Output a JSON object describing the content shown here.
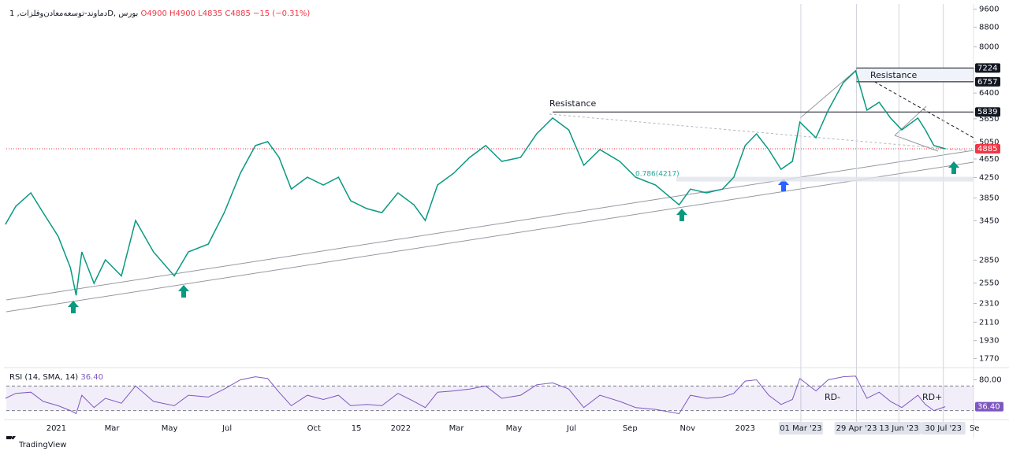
{
  "chart_data": [
    {
      "type": "line",
      "title": "دماوند-توسعه‌معادن‌وفلزات, 1D, بورس",
      "ohlc": [
        {
          "label": "O",
          "value": 4900
        },
        {
          "label": "H",
          "value": 4900
        },
        {
          "label": "L",
          "value": 4835
        },
        {
          "label": "C",
          "value": 4885
        }
      ],
      "change": "−15 (−0.31%)",
      "log_scale": true,
      "grid": false,
      "color": "#089981",
      "x": [
        "2020-11-08",
        "2020-11-19",
        "2020-12-05",
        "2020-12-18",
        "2021-01-03",
        "2021-01-16",
        "2021-01-22",
        "2021-01-28",
        "2021-02-10",
        "2021-02-22",
        "2021-03-11",
        "2021-03-26",
        "2021-04-14",
        "2021-05-06",
        "2021-05-21",
        "2021-06-11",
        "2021-06-28",
        "2021-07-15",
        "2021-07-31",
        "2021-08-13",
        "2021-08-25",
        "2021-09-07",
        "2021-09-24",
        "2021-10-11",
        "2021-10-27",
        "2021-11-09",
        "2021-11-26",
        "2021-12-12",
        "2021-12-29",
        "2022-01-15",
        "2022-01-27",
        "2022-02-09",
        "2022-02-26",
        "2022-03-15",
        "2022-04-01",
        "2022-04-18",
        "2022-05-08",
        "2022-05-25",
        "2022-06-11",
        "2022-06-28",
        "2022-07-14",
        "2022-07-31",
        "2022-08-21",
        "2022-09-07",
        "2022-09-28",
        "2022-10-23",
        "2022-11-04",
        "2022-11-21",
        "2022-12-08",
        "2022-12-20",
        "2023-01-01",
        "2023-01-13",
        "2023-01-26",
        "2023-02-08",
        "2023-02-20",
        "2023-02-28",
        "2023-03-17",
        "2023-03-30",
        "2023-04-15",
        "2023-04-28",
        "2023-05-10",
        "2023-05-23",
        "2023-06-04",
        "2023-06-16",
        "2023-07-03",
        "2023-07-11",
        "2023-07-20",
        "2023-08-01"
      ],
      "values": [
        3387,
        3697,
        3946,
        3586,
        3198,
        2744,
        2403,
        2965,
        2546,
        2855,
        2640,
        3452,
        2965,
        2640,
        2965,
        3079,
        3586,
        4340,
        4962,
        5057,
        4684,
        4020,
        4258,
        4100,
        4258,
        3798,
        3657,
        3586,
        3946,
        3725,
        3452,
        4100,
        4340,
        4684,
        4962,
        4596,
        4684,
        5252,
        5670,
        5354,
        4509,
        4866,
        4596,
        4258,
        4100,
        3725,
        4020,
        3946,
        4020,
        4258,
        4962,
        5252,
        4866,
        4424,
        4596,
        5561,
        5154,
        5890,
        6731,
        7128,
        5890,
        6120,
        5670,
        5354,
        5670,
        5354,
        4962,
        4885
      ],
      "xlim": [
        "2020-11-09",
        "2023-08-31"
      ],
      "xticks": [
        {
          "value": "2021-01-01",
          "label": "2021"
        },
        {
          "value": "2021-03-01",
          "label": "Mar"
        },
        {
          "value": "2021-05-01",
          "label": "May"
        },
        {
          "value": "2021-07-01",
          "label": "Jul"
        },
        {
          "value": "2021-10-01",
          "label": "Oct"
        },
        {
          "value": "2021-11-15",
          "label": "15"
        },
        {
          "value": "2022-01-01",
          "label": "2022"
        },
        {
          "value": "2022-03-01",
          "label": "Mar"
        },
        {
          "value": "2022-05-01",
          "label": "May"
        },
        {
          "value": "2022-07-01",
          "label": "Jul"
        },
        {
          "value": "2022-09-01",
          "label": "Sep"
        },
        {
          "value": "2022-11-01",
          "label": "Nov"
        },
        {
          "value": "2023-01-01",
          "label": "2023"
        },
        {
          "value": "2023-09-01",
          "label": "Se"
        }
      ],
      "marker_dates": [
        {
          "value": "2023-03-01",
          "label": "01 Mar '23"
        },
        {
          "value": "2023-04-29",
          "label": "29 Apr '23"
        },
        {
          "value": "2023-06-13",
          "label": "13 Jun '23"
        },
        {
          "value": "2023-07-30",
          "label": "30 Jul '23"
        }
      ],
      "ylim": [
        1700,
        9850
      ],
      "yticks": [
        9600,
        8800,
        8000,
        7200,
        6400,
        5650,
        5050,
        4650,
        4250,
        3850,
        3450,
        2850,
        2550,
        2310,
        2110,
        1930,
        1770
      ],
      "levels": [
        {
          "value": 7224,
          "from": "2023-04-29"
        },
        {
          "value": 6757,
          "from": "2023-04-29"
        },
        {
          "value": 5839,
          "from": "2022-06-11"
        }
      ],
      "last": 4885,
      "annotations": [
        "Resistance",
        "Resistance",
        "0.786(4217)"
      ]
    },
    {
      "type": "line",
      "title": "RSI (14, SMA, 14)",
      "color": "#7e57c2",
      "values": [
        50,
        58,
        60,
        45,
        38,
        30,
        25,
        55,
        35,
        50,
        42,
        70,
        45,
        38,
        55,
        52,
        65,
        80,
        85,
        82,
        60,
        38,
        55,
        48,
        55,
        38,
        40,
        38,
        58,
        45,
        35,
        60,
        62,
        65,
        70,
        50,
        55,
        72,
        75,
        65,
        35,
        55,
        45,
        35,
        32,
        25,
        55,
        50,
        52,
        58,
        78,
        80,
        55,
        40,
        48,
        82,
        62,
        80,
        85,
        86,
        50,
        60,
        45,
        35,
        55,
        40,
        30,
        36.4
      ],
      "ylim": [
        6.5,
        96
      ],
      "yticks": [
        {
          "value": 80,
          "label": "80.00"
        }
      ],
      "bands": [
        70,
        30
      ],
      "last": {
        "value": 36.4,
        "label": "36.40"
      },
      "annotations": [
        "RD-",
        "RD+"
      ]
    }
  ],
  "footer": "TradingView"
}
